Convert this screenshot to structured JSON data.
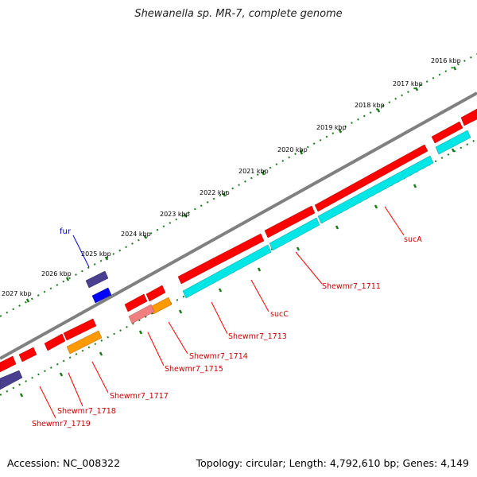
{
  "title": "Shewanella sp. MR-7, complete genome",
  "footer": {
    "accession": "Accession: NC_008322",
    "topology": "Topology: circular; Length: 4,792,610 bp; Genes: 4,149"
  },
  "colors": {
    "forward_cds": "#ff0000",
    "reverse_cds": "#00e5e5",
    "orange": "#ff9900",
    "pink": "#f08080",
    "slate": "#4a3f8f",
    "blue": "#0000ff",
    "backbone": "#808080",
    "ticks": "#1a7a1a",
    "label_red": "#cc0000",
    "label_blue": "#0000cc"
  },
  "kbp_ticks": [
    "2016 kbp",
    "2017 kbp",
    "2018 kbp",
    "2019 kbp",
    "2020 kbp",
    "2021 kbp",
    "2022 kbp",
    "2023 kbp",
    "2024 kbp",
    "2025 kbp",
    "2026 kbp",
    "2027 kbp"
  ],
  "gene_labels": {
    "fur": "fur",
    "sucA": "sucA",
    "sucC": "sucC",
    "g1711": "Shewmr7_1711",
    "g1713": "Shewmr7_1713",
    "g1714": "Shewmr7_1714",
    "g1715": "Shewmr7_1715",
    "g1717": "Shewmr7_1717",
    "g1718": "Shewmr7_1718",
    "g1719": "Shewmr7_1719"
  }
}
